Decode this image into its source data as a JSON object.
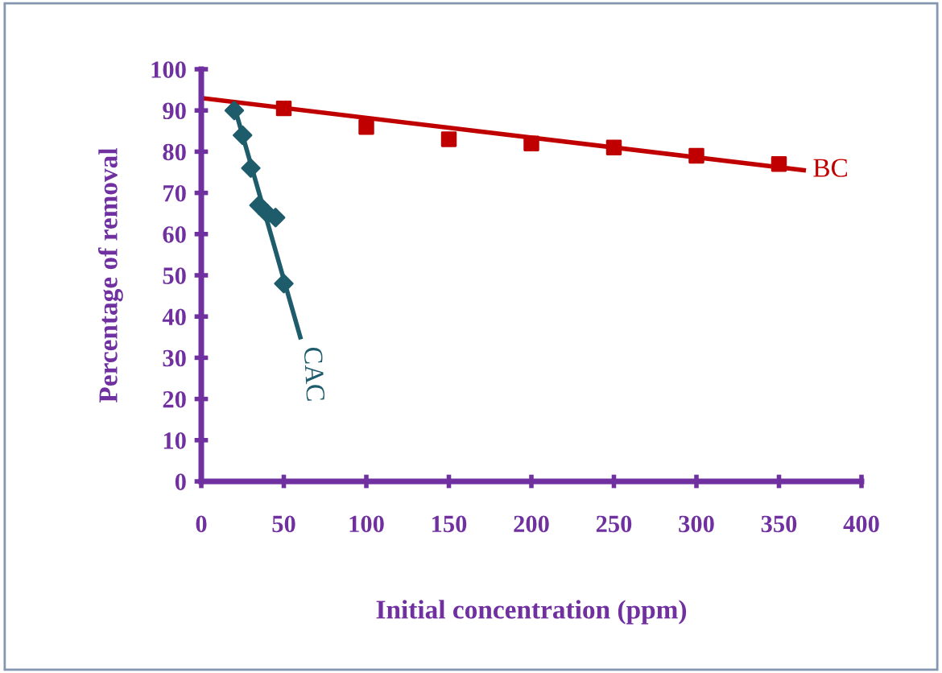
{
  "chart_data": {
    "type": "scatter",
    "xlabel": "Initial concentration (ppm)",
    "ylabel": "Percentage of removal",
    "xlim": [
      0,
      400
    ],
    "xticks": [
      0,
      50,
      100,
      150,
      200,
      250,
      300,
      350,
      400
    ],
    "ylim": [
      0,
      100
    ],
    "yticks": [
      0,
      10,
      20,
      30,
      40,
      50,
      60,
      70,
      80,
      90,
      100
    ],
    "grid": false,
    "legend": false,
    "series": [
      {
        "marker": "square",
        "color": "#c00000",
        "x": [
          50,
          100,
          150,
          200,
          250,
          300,
          350
        ],
        "values": [
          90.5,
          86,
          83,
          82,
          81,
          79,
          77
        ]
      },
      {
        "type": "line",
        "marker": "none",
        "name": "BC",
        "color": "#c00000",
        "x": [
          0,
          365
        ],
        "values": [
          93,
          75.5
        ]
      },
      {
        "marker": "diamond",
        "color": "#1f5c6b",
        "x": [
          20,
          25,
          30,
          35,
          40,
          45,
          50
        ],
        "values": [
          90,
          84,
          76,
          67,
          65,
          64,
          48
        ]
      },
      {
        "type": "line",
        "marker": "none",
        "name": "CAC",
        "color": "#1f5c6b",
        "x": [
          20,
          60
        ],
        "values": [
          91,
          35
        ]
      }
    ]
  }
}
